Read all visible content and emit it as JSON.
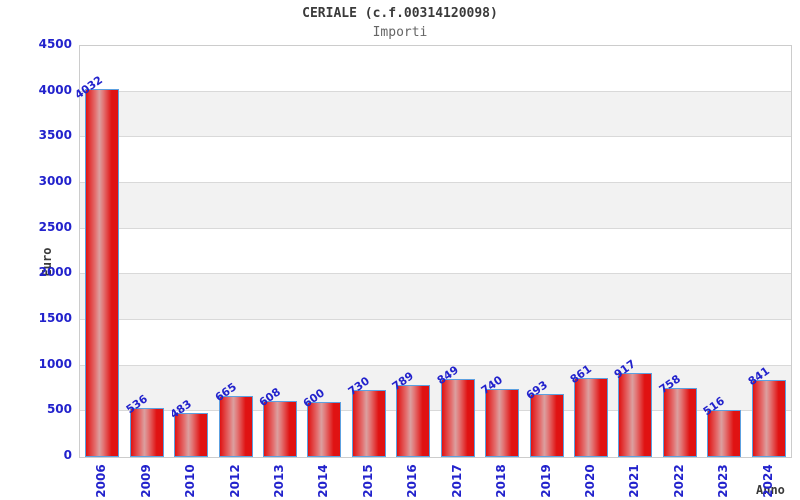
{
  "header": {
    "title": "CERIALE (c.f.00314120098)",
    "subtitle": "Importi"
  },
  "chart_data": {
    "type": "bar",
    "title": "CERIALE (c.f.00314120098)",
    "subtitle": "Importi",
    "xlabel": "Anno",
    "ylabel": "Euro",
    "categories": [
      "2006",
      "2009",
      "2010",
      "2012",
      "2013",
      "2014",
      "2015",
      "2016",
      "2017",
      "2018",
      "2019",
      "2020",
      "2021",
      "2022",
      "2023",
      "2024"
    ],
    "values": [
      4032,
      536,
      483,
      665,
      608,
      600,
      730,
      789,
      849,
      740,
      693,
      861,
      917,
      758,
      516,
      841
    ],
    "ylim": [
      0,
      4500
    ],
    "ytick_step": 500,
    "yticks": [
      0,
      500,
      1000,
      1500,
      2000,
      2500,
      3000,
      3500,
      4000,
      4500
    ],
    "grid": "horizontal-bands-alternating",
    "legend": "none",
    "colors": {
      "bar_edge_red": "#e01212",
      "bar_mid_light": "#dba0a0",
      "bar_border_blue": "#5ca0e0",
      "label_blue": "#2222cc",
      "band_gray": "#f2f2f2",
      "grid_line": "#d9d9d9",
      "plot_border": "#cccccc",
      "axis_title_text": "#3a3a3a"
    }
  }
}
